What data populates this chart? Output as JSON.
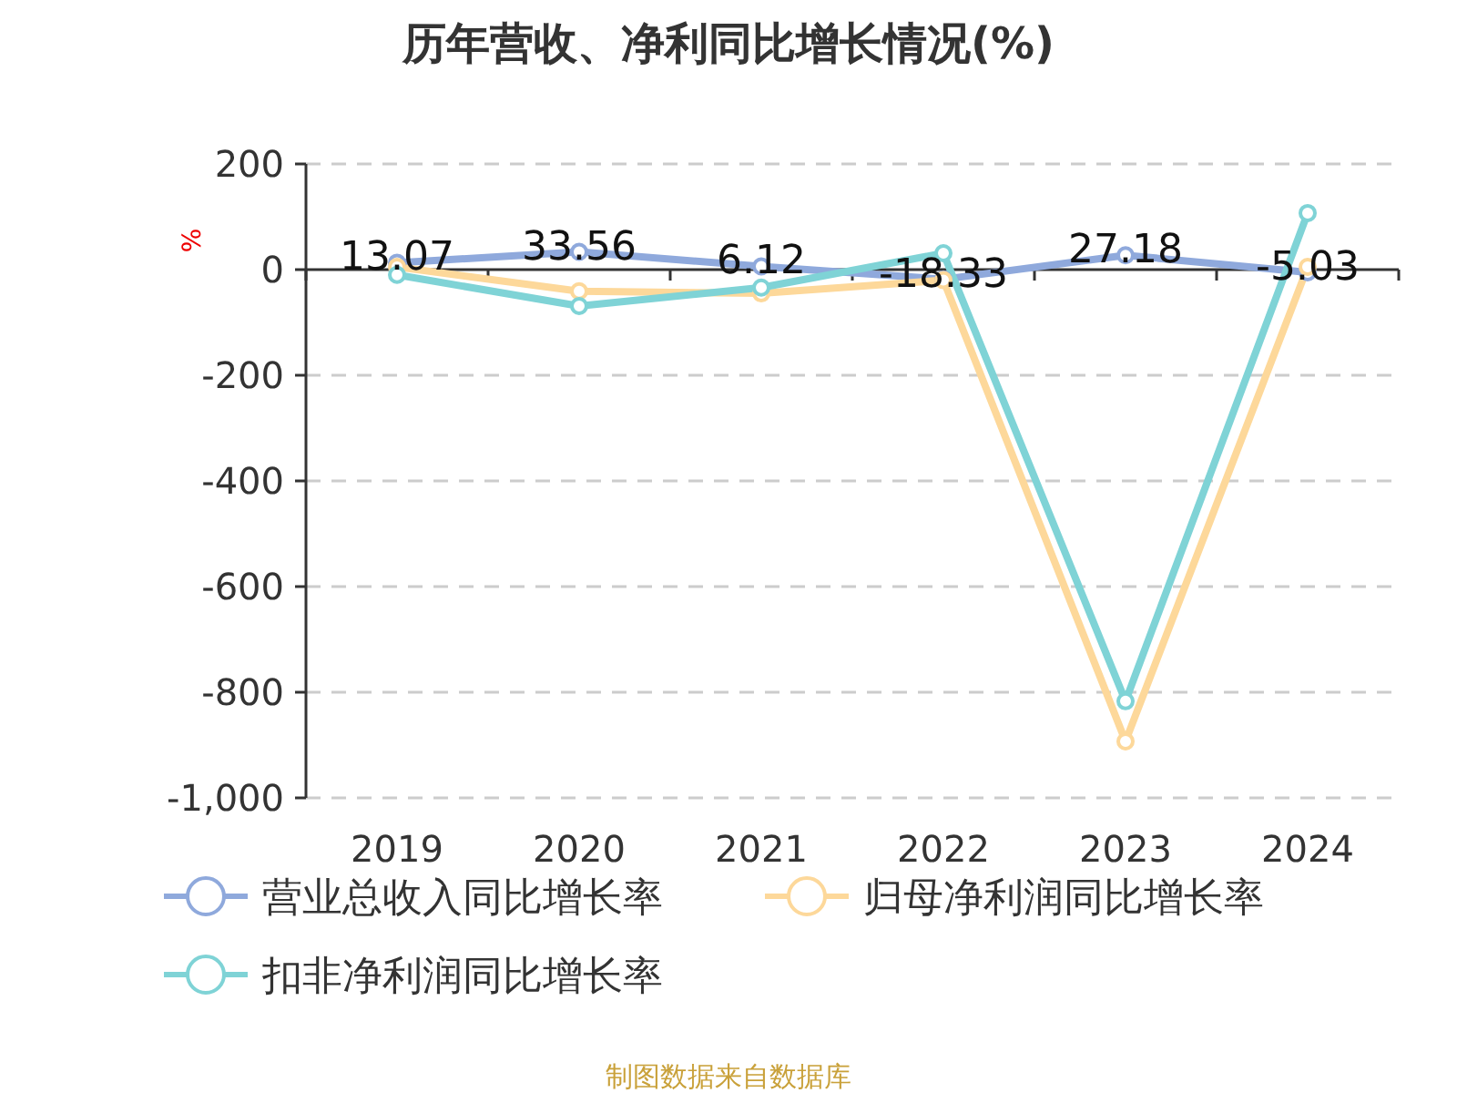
{
  "chart_data": {
    "type": "line",
    "title": "历年营收、净利同比增长情况(%)",
    "ylabel": "%",
    "categories": [
      "2019",
      "2020",
      "2021",
      "2022",
      "2023",
      "2024"
    ],
    "series": [
      {
        "name": "营业总收入同比增长率",
        "color": "#8fa9dc",
        "values": [
          13.07,
          33.56,
          6.12,
          -18.33,
          27.18,
          -5.03
        ],
        "value_labels": [
          "13.07",
          "33.56",
          "6.12",
          "-18.33",
          "27.18",
          "-5.03"
        ]
      },
      {
        "name": "归母净利润同比增长率",
        "color": "#fdd89a",
        "values": [
          5,
          -41,
          -45,
          -20,
          -893,
          5
        ]
      },
      {
        "name": "扣非净利润同比增长率",
        "color": "#7fd3d6",
        "values": [
          -10,
          -69,
          -34,
          31,
          -817,
          107
        ]
      }
    ],
    "ylim": [
      -1000,
      200
    ],
    "yticks": [
      {
        "value": -1000,
        "label": "-1,000"
      },
      -800,
      -600,
      -400,
      -200,
      0,
      200
    ],
    "grid": "y",
    "legend": "bottom",
    "marker": "circle",
    "line_style": "solid",
    "annotations": [
      "制图数据来自数据库"
    ]
  }
}
